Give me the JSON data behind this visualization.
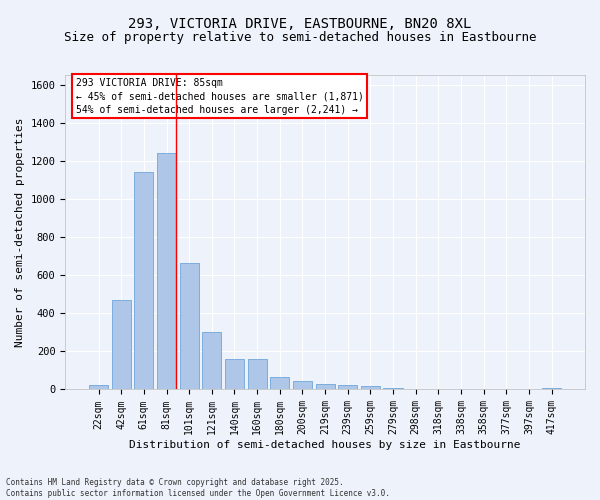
{
  "title": "293, VICTORIA DRIVE, EASTBOURNE, BN20 8XL",
  "subtitle": "Size of property relative to semi-detached houses in Eastbourne",
  "xlabel": "Distribution of semi-detached houses by size in Eastbourne",
  "ylabel": "Number of semi-detached properties",
  "categories": [
    "22sqm",
    "42sqm",
    "61sqm",
    "81sqm",
    "101sqm",
    "121sqm",
    "140sqm",
    "160sqm",
    "180sqm",
    "200sqm",
    "219sqm",
    "239sqm",
    "259sqm",
    "279sqm",
    "298sqm",
    "318sqm",
    "338sqm",
    "358sqm",
    "377sqm",
    "397sqm",
    "417sqm"
  ],
  "values": [
    22,
    470,
    1140,
    1240,
    665,
    300,
    160,
    160,
    65,
    42,
    30,
    25,
    18,
    10,
    4,
    2,
    1,
    1,
    0,
    0,
    8
  ],
  "bar_color": "#aec6e8",
  "bar_edge_color": "#5b9bd5",
  "annotation_title": "293 VICTORIA DRIVE: 85sqm",
  "annotation_line2": "← 45% of semi-detached houses are smaller (1,871)",
  "annotation_line3": "54% of semi-detached houses are larger (2,241) →",
  "footer_line1": "Contains HM Land Registry data © Crown copyright and database right 2025.",
  "footer_line2": "Contains public sector information licensed under the Open Government Licence v3.0.",
  "ylim": [
    0,
    1650
  ],
  "background_color": "#eef2fb",
  "plot_background": "#eef2fb",
  "grid_color": "#ffffff",
  "title_fontsize": 10,
  "subtitle_fontsize": 9,
  "tick_fontsize": 7,
  "ylabel_fontsize": 8,
  "xlabel_fontsize": 8,
  "footer_fontsize": 5.5,
  "annot_fontsize": 7,
  "red_line_bar_index": 3
}
